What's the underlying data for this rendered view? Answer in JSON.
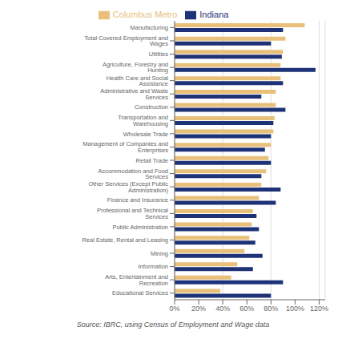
{
  "chart_data": {
    "type": "bar",
    "orientation": "horizontal",
    "categories": [
      "Manufacturing",
      "Total Covered Employment and Wages",
      "Utilities",
      "Agriculture, Forestry and Hunting",
      "Health Care and Social Assistance",
      "Administrative and Waste Services",
      "Construction",
      "Transportation and Warehousing",
      "Wholesale Trade",
      "Management of Companies and Enterprises",
      "Retail Trade",
      "Accommodation and Food Services",
      "Other Services (Except Public Administration)",
      "Finance and Insurance",
      "Professional and Technical Services",
      "Public Administration",
      "Real Estate, Rental and Leasing",
      "Mining",
      "Information",
      "Arts, Entertainment and Recreation",
      "Educational Services"
    ],
    "series": [
      {
        "name": "Columbus Metro",
        "color": "#e8c07a",
        "values": [
          108,
          92,
          90,
          88,
          88,
          84,
          84,
          83,
          82,
          80,
          78,
          76,
          72,
          70,
          65,
          64,
          62,
          58,
          52,
          47,
          38
        ]
      },
      {
        "name": "Indiana",
        "color": "#1e3278",
        "values": [
          90,
          80,
          89,
          117,
          90,
          72,
          92,
          82,
          80,
          75,
          80,
          72,
          88,
          84,
          68,
          70,
          67,
          73,
          65,
          90,
          80
        ]
      }
    ],
    "xlim": [
      0,
      125
    ],
    "xticks": [
      {
        "value": 0,
        "label": "0%"
      },
      {
        "value": 20,
        "label": "20%"
      },
      {
        "value": 40,
        "label": "40%"
      },
      {
        "value": 60,
        "label": "60%"
      },
      {
        "value": 80,
        "label": "80%"
      },
      {
        "value": 100,
        "label": "100%"
      },
      {
        "value": 120,
        "label": "120%"
      }
    ],
    "grid": true,
    "legend": "top",
    "annotations": [
      "Source: IBRC, using Census of Employment and Wage data"
    ]
  }
}
